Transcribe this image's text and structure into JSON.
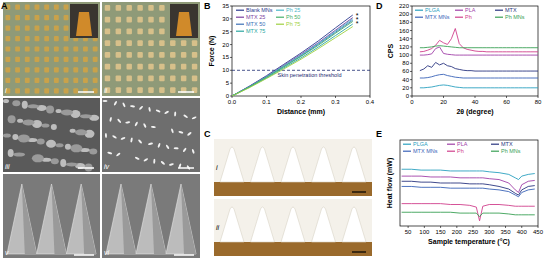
{
  "figure": {
    "panel_labels": [
      "A",
      "B",
      "C",
      "D",
      "E"
    ],
    "panel_A_sublabels": [
      "i",
      "ii",
      "iii",
      "iv",
      "v",
      "vi"
    ],
    "panel_C_sublabels": [
      "i",
      "ii"
    ]
  },
  "chart_data": [
    {
      "type": "line",
      "x_label": "Distance (mm)",
      "y_label": "Force (N)",
      "x": [
        0,
        0.05,
        0.1,
        0.15,
        0.2,
        0.25,
        0.3,
        0.35
      ],
      "series": [
        {
          "name": "Blank MNs",
          "color": "#2b3a8f",
          "values": [
            0,
            3.8,
            7.9,
            12.3,
            16.7,
            21.4,
            26.5,
            31.5
          ]
        },
        {
          "name": "MTX 25",
          "color": "#7b3fa0",
          "values": [
            0,
            3.7,
            7.6,
            11.9,
            16.2,
            20.7,
            25.6,
            30.5
          ]
        },
        {
          "name": "MTX 50",
          "color": "#3b6fb6",
          "values": [
            0,
            3.5,
            7.4,
            11.5,
            15.6,
            20.1,
            24.8,
            29.5
          ]
        },
        {
          "name": "MTX 75",
          "color": "#2aa6a0",
          "values": [
            0,
            3.4,
            7.0,
            10.9,
            14.8,
            19.0,
            23.5,
            28
          ]
        },
        {
          "name": "Ph 25",
          "color": "#4ab7c8",
          "values": [
            0,
            3.6,
            7.5,
            11.7,
            15.9,
            20.4,
            25.2,
            30
          ]
        },
        {
          "name": "Ph 50",
          "color": "#45b06a",
          "values": [
            0,
            3.5,
            7.3,
            11.3,
            15.4,
            19.7,
            24.4,
            29
          ]
        },
        {
          "name": "Ph 75",
          "color": "#9ed040",
          "values": [
            0,
            3.2,
            6.8,
            10.5,
            14.3,
            18.4,
            22.7,
            27
          ]
        }
      ],
      "xlim": [
        0,
        0.4
      ],
      "xticks": [
        {
          "value": 0,
          "label": "0.0"
        },
        {
          "value": 0.1,
          "label": "0.1"
        },
        {
          "value": 0.2,
          "label": "0.2"
        },
        {
          "value": 0.3,
          "label": "0.3"
        },
        {
          "value": 0.4,
          "label": "0.4"
        }
      ],
      "ylim": [
        0,
        35
      ],
      "yticks": [
        0,
        5,
        10,
        15,
        20,
        25,
        30,
        35
      ],
      "reference_line": {
        "value": 10,
        "label": "Skin penetration threshold",
        "line_style": "dashed"
      },
      "annotations": [
        "*",
        "*",
        "*"
      ],
      "legend": "top-left",
      "grid": false
    },
    {
      "type": "line",
      "x_label": "2θ (degree)",
      "y_label": "CPS",
      "x": [
        5,
        7.5,
        10,
        12.5,
        15,
        17.5,
        20,
        22.5,
        25,
        27.5,
        30,
        32.5,
        35,
        37.5,
        40,
        42.5,
        45,
        47.5,
        50,
        52.5,
        55,
        57.5,
        60,
        62.5,
        65,
        67.5,
        70,
        72.5,
        75,
        77.5,
        80
      ],
      "series": [
        {
          "name": "PLGA",
          "color": "#2aa0c0",
          "values": [
            20,
            20,
            21,
            22,
            24,
            26,
            27,
            26,
            24,
            22,
            21,
            20,
            20,
            20,
            20,
            20,
            20,
            20,
            20,
            20,
            20,
            20,
            20,
            20,
            20,
            20,
            20,
            20,
            20,
            20,
            20
          ]
        },
        {
          "name": "PLA",
          "color": "#a040a8",
          "values": [
            100,
            100,
            101,
            103,
            116,
            120,
            104,
            102,
            101,
            100,
            100,
            100,
            100,
            100,
            100,
            100,
            100,
            100,
            100,
            100,
            100,
            100,
            100,
            100,
            100,
            100,
            100,
            100,
            100,
            100,
            100
          ]
        },
        {
          "name": "MTX",
          "color": "#2a3580",
          "values": [
            62,
            66,
            74,
            70,
            82,
            76,
            80,
            74,
            72,
            67,
            65,
            63,
            62,
            62,
            61,
            61,
            61,
            61,
            61,
            61,
            61,
            61,
            61,
            61,
            61,
            61,
            61,
            61,
            61,
            61,
            61
          ]
        },
        {
          "name": "MTX MNs",
          "color": "#3a63b8",
          "values": [
            44,
            44,
            45,
            47,
            50,
            52,
            53,
            50,
            48,
            46,
            45,
            44,
            44,
            44,
            44,
            44,
            44,
            44,
            44,
            44,
            44,
            44,
            44,
            44,
            44,
            44,
            44,
            44,
            44,
            44,
            44
          ]
        },
        {
          "name": "Ph",
          "color": "#d0408c",
          "values": [
            108,
            109,
            112,
            116,
            124,
            136,
            130,
            126,
            140,
            165,
            128,
            118,
            114,
            112,
            110,
            109,
            109,
            108,
            108,
            108,
            108,
            108,
            108,
            108,
            108,
            108,
            108,
            108,
            108,
            108,
            108
          ]
        },
        {
          "name": "Ph MNs",
          "color": "#3aa055",
          "values": [
            118,
            118,
            119,
            120,
            122,
            123,
            122,
            121,
            120,
            119,
            118,
            118,
            118,
            118,
            118,
            118,
            118,
            118,
            118,
            118,
            118,
            118,
            118,
            118,
            118,
            118,
            118,
            118,
            118,
            118,
            118
          ]
        }
      ],
      "xlim": [
        0,
        80
      ],
      "xticks": [
        0,
        20,
        40,
        60,
        80
      ],
      "ylim": [
        0,
        220
      ],
      "yticks": [
        0,
        20,
        40,
        60,
        80,
        100,
        120,
        140,
        160,
        180,
        200,
        220
      ],
      "legend": "top",
      "grid": false
    },
    {
      "type": "line",
      "x_label": "Sample temperature (°C)",
      "y_label": "Heat flow (mW)",
      "x": [
        30,
        60,
        90,
        120,
        150,
        180,
        210,
        240,
        260,
        270,
        280,
        300,
        330,
        360,
        380,
        390,
        400,
        420,
        440
      ],
      "series": [
        {
          "name": "PLGA",
          "color": "#2aa0c0",
          "values": [
            8.6,
            8.6,
            8.5,
            8.5,
            8.5,
            8.4,
            8.4,
            8.4,
            8.4,
            8.4,
            8.4,
            8.3,
            8.2,
            8.0,
            7.6,
            7.4,
            7.8,
            8.0,
            8.1
          ]
        },
        {
          "name": "PLA",
          "color": "#a040a8",
          "values": [
            7.8,
            7.8,
            7.8,
            7.7,
            7.7,
            7.7,
            7.6,
            7.6,
            7.6,
            7.6,
            7.6,
            7.5,
            7.4,
            7.0,
            6.2,
            5.9,
            6.8,
            7.2,
            7.3
          ]
        },
        {
          "name": "MTX",
          "color": "#2a3580",
          "values": [
            7.2,
            7.2,
            7.1,
            7.1,
            7.0,
            7.0,
            7.0,
            6.9,
            6.9,
            6.9,
            6.9,
            6.8,
            6.6,
            6.3,
            5.8,
            5.6,
            6.2,
            6.6,
            6.7
          ]
        },
        {
          "name": "MTX MNs",
          "color": "#3a63b8",
          "values": [
            6.6,
            6.6,
            6.5,
            6.5,
            6.5,
            6.4,
            6.4,
            6.4,
            6.4,
            6.4,
            6.4,
            6.3,
            6.2,
            6.0,
            5.6,
            5.4,
            5.9,
            6.2,
            6.3
          ]
        },
        {
          "name": "Ph",
          "color": "#d0408c",
          "values": [
            4.6,
            4.6,
            4.6,
            4.6,
            4.6,
            4.5,
            4.5,
            4.4,
            4.2,
            2.6,
            4.3,
            4.5,
            4.5,
            4.4,
            4.3,
            4.3,
            4.3,
            4.3,
            4.3
          ]
        },
        {
          "name": "Ph MNs",
          "color": "#3aa055",
          "values": [
            3.6,
            3.6,
            3.6,
            3.6,
            3.6,
            3.6,
            3.5,
            3.5,
            3.5,
            3.1,
            3.5,
            3.5,
            3.5,
            3.4,
            3.3,
            3.3,
            3.3,
            3.3,
            3.3
          ]
        }
      ],
      "xlim": [
        25,
        450
      ],
      "xticks": [
        50,
        100,
        150,
        200,
        250,
        300,
        350,
        400,
        450
      ],
      "ylim": [
        2,
        12
      ],
      "tick_labels": "x",
      "legend": "top",
      "grid": false
    }
  ]
}
